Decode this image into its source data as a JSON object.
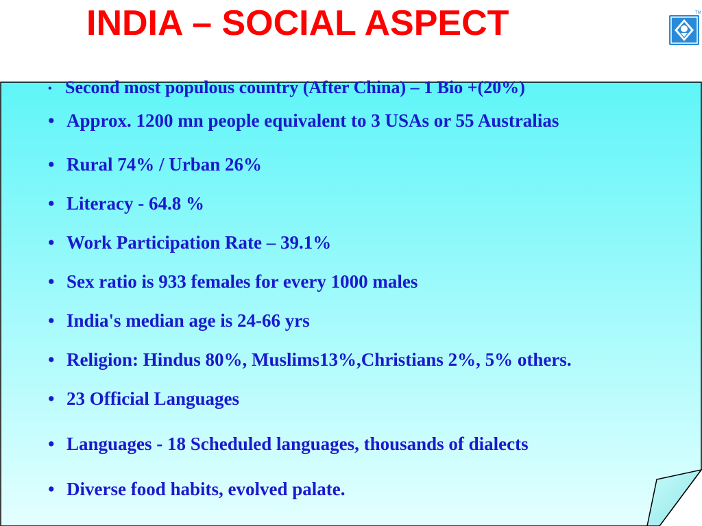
{
  "slide": {
    "title": "INDIA – SOCIAL ASPECT",
    "logo_icon": "company-logo-icon",
    "logo_mark": "TM",
    "bullet_char": "•",
    "bullets": [
      "Second most populous country (After China) – 1 Bio +(20%)",
      "Approx. 1200 mn people  equivalent to 3 USAs or 55 Australias",
      "Rural  74% / Urban  26%",
      "Literacy - 64.8 %",
      "Work Participation Rate – 39.1%",
      "Sex ratio is 933 females for every 1000 males",
      "India's median age is 24-66 yrs",
      "Religion: Hindus 80%, Muslims13%,Christians 2%, 5% others.",
      "23 Official Languages",
      "Languages - 18 Scheduled languages, thousands of dialects",
      "Diverse food habits, evolved palate."
    ]
  },
  "colors": {
    "title": "#ff0000",
    "text": "#1a1acc",
    "note_top": "#5ff5f8",
    "note_bottom": "#e4ffff",
    "logo_blue": "#2a8ad8"
  }
}
